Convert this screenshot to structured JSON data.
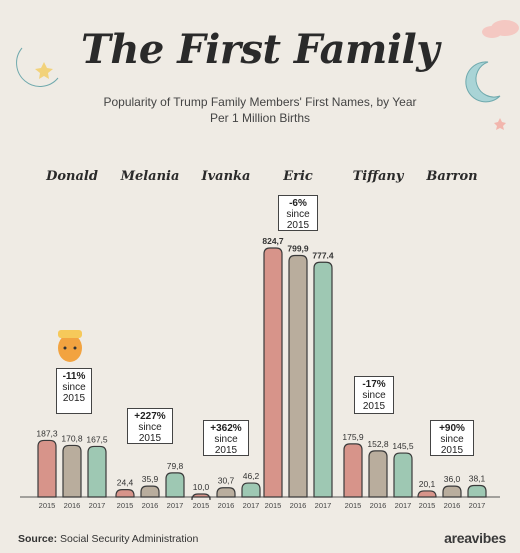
{
  "title": "The First Family",
  "subtitle_line1": "Popularity of Trump Family Members' First Names, by Year",
  "subtitle_line2": "Per 1 Million Births",
  "source_label": "Source:",
  "source_text": "Social Security Administration",
  "brand": "areavibes",
  "colors": {
    "2015": "#d7948a",
    "2016": "#b9ad9d",
    "2017": "#9ec8b3",
    "outline": "#3a3a3a",
    "baseline": "#555555"
  },
  "chart_data": {
    "type": "bar",
    "title": "The First Family",
    "subtitle": "Popularity of Trump Family Members' First Names, by Year Per 1 Million Births",
    "years": [
      "2015",
      "2016",
      "2017"
    ],
    "ylim": [
      0,
      850
    ],
    "groups": [
      {
        "name": "Donald",
        "values": [
          187.3,
          170.8,
          167.5
        ],
        "labels": [
          "187,3",
          "170,8",
          "167,5"
        ],
        "change_pct": "-11%",
        "change_text": "since",
        "change_year": "2015"
      },
      {
        "name": "Melania",
        "values": [
          24.4,
          35.9,
          79.8
        ],
        "labels": [
          "24,4",
          "35,9",
          "79,8"
        ],
        "change_pct": "+227%",
        "change_text": "since",
        "change_year": "2015"
      },
      {
        "name": "Ivanka",
        "values": [
          10.0,
          30.7,
          46.2
        ],
        "labels": [
          "10,0",
          "30,7",
          "46,2"
        ],
        "change_pct": "+362%",
        "change_text": "since",
        "change_year": "2015"
      },
      {
        "name": "Eric",
        "values": [
          824.7,
          799.9,
          777.4
        ],
        "labels": [
          "824,7",
          "799,9",
          "777.4"
        ],
        "change_pct": "-6%",
        "change_text": "since",
        "change_year": "2015"
      },
      {
        "name": "Tiffany",
        "values": [
          175.9,
          152.8,
          145.5
        ],
        "labels": [
          "175,9",
          "152,8",
          "145,5"
        ],
        "change_pct": "-17%",
        "change_text": "since",
        "change_year": "2015"
      },
      {
        "name": "Barron",
        "values": [
          20.1,
          36.0,
          38.1
        ],
        "labels": [
          "20,1",
          "36,0",
          "38,1"
        ],
        "change_pct": "+90%",
        "change_text": "since",
        "change_year": "2015"
      }
    ]
  }
}
